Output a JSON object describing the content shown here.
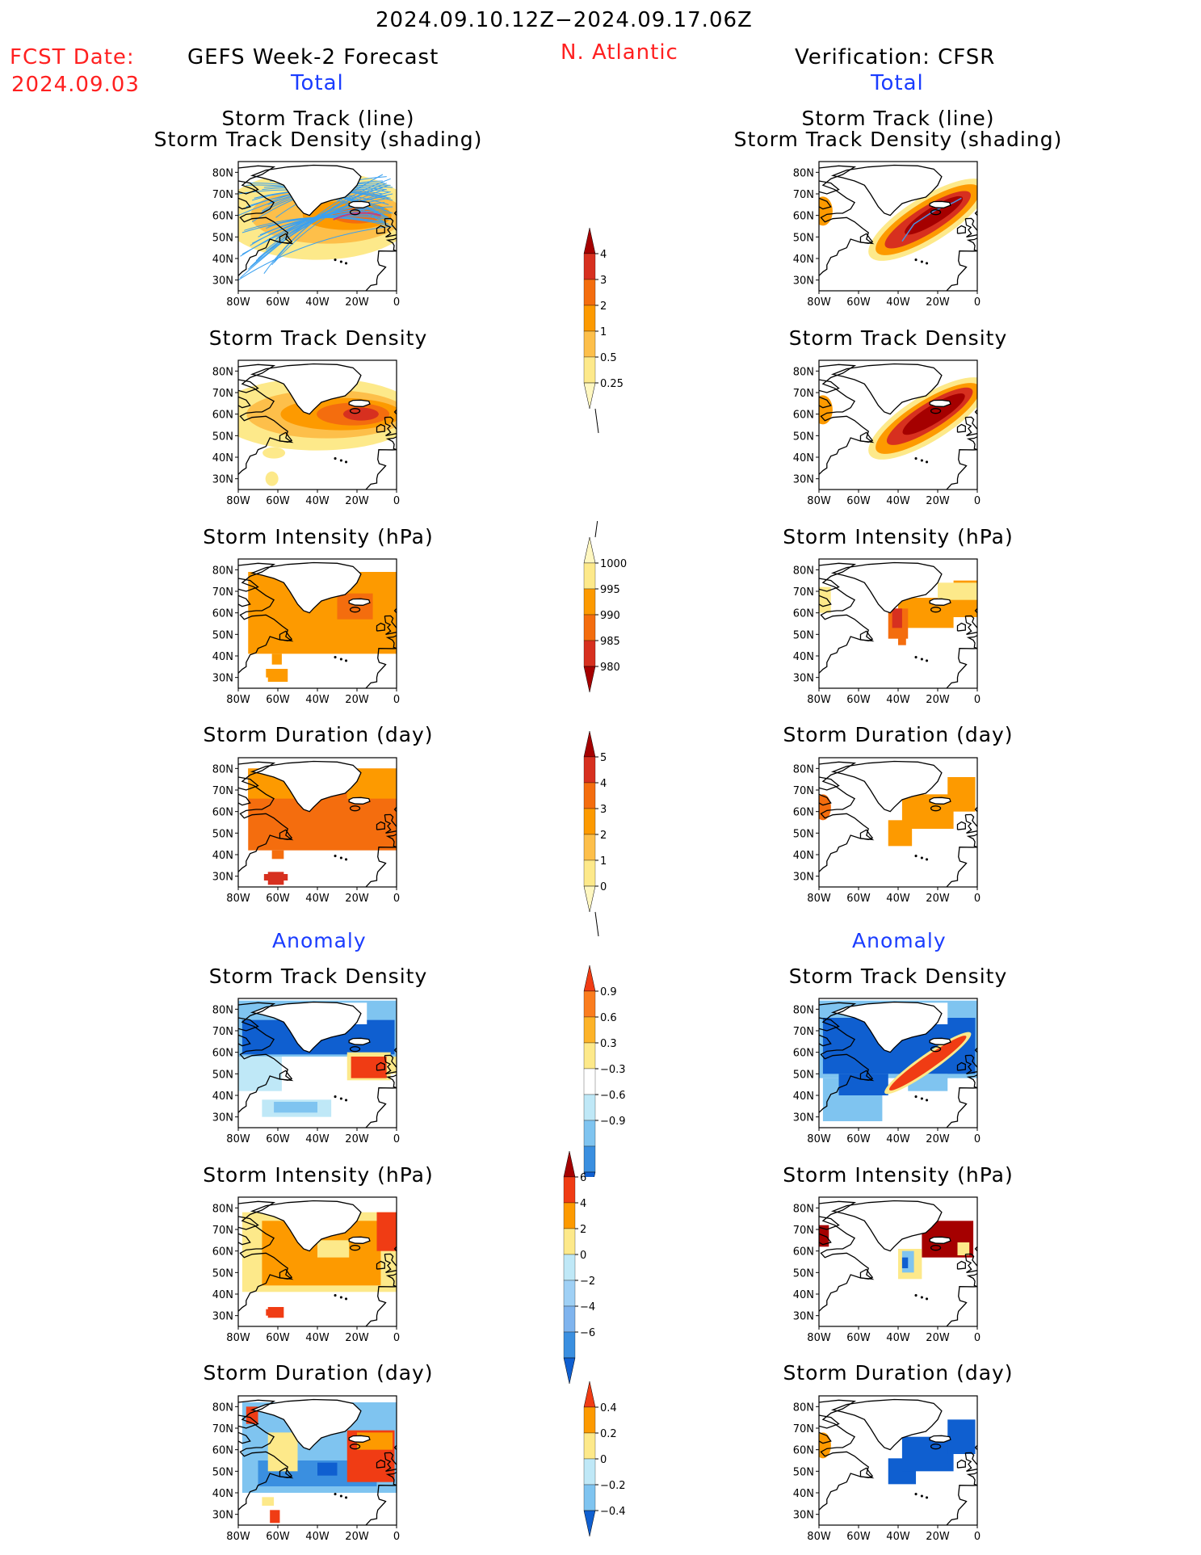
{
  "header": {
    "date_range": "2024.09.10.12Z−2024.09.17.06Z",
    "fcst_label": "FCST Date:",
    "fcst_date": "2024.09.03",
    "left_title": "GEFS Week-2 Forecast",
    "region": "N. Atlantic",
    "right_title": "Verification: CFSR"
  },
  "sections": {
    "total": "Total",
    "anomaly": "Anomaly"
  },
  "panel_titles": {
    "track_line": "Storm Track (line)",
    "track_shading": "Storm Track Density (shading)",
    "track_density": "Storm Track Density",
    "intensity": "Storm Intensity (hPa)",
    "duration": "Storm Duration (day)"
  },
  "axes": {
    "lat_ticks": [
      "80N",
      "70N",
      "60N",
      "50N",
      "40N",
      "30N"
    ],
    "lon_ticks": [
      "80W",
      "60W",
      "40W",
      "20W",
      "0"
    ]
  },
  "colorbars": [
    {
      "id": "cb-density",
      "labels": [
        "4",
        "3",
        "2",
        "1",
        "0.5",
        "0.25"
      ],
      "colors": [
        "#a50000",
        "#d7301f",
        "#f46d0e",
        "#fd9a00",
        "#fdbf4a",
        "#fde98a",
        "#fff7c0"
      ],
      "tail": "bottom"
    },
    {
      "id": "cb-intensity",
      "labels": [
        "1000",
        "995",
        "990",
        "985",
        "980"
      ],
      "colors": [
        "#fff7c0",
        "#fde98a",
        "#fd9a00",
        "#f46d0e",
        "#d7301f",
        "#a50000"
      ],
      "tail": "top"
    },
    {
      "id": "cb-duration",
      "labels": [
        "5",
        "4",
        "3",
        "2",
        "1",
        "0"
      ],
      "colors": [
        "#a50000",
        "#d7301f",
        "#f46d0e",
        "#fd9a00",
        "#fdbf4a",
        "#fde98a",
        "#fff7c0"
      ],
      "tail": "bottom"
    },
    {
      "id": "cb-anom-density",
      "labels": [
        "0.9",
        "0.6",
        "0.3",
        "−0.3",
        "−0.6",
        "−0.9"
      ],
      "colors": [
        "#f03c14",
        "#fb7d1e",
        "#fdb328",
        "#fde98a",
        "#ffffff",
        "#bfe8f7",
        "#7fc4f0",
        "#3a8fe0",
        "#0f5fd0"
      ],
      "tail": "none"
    },
    {
      "id": "cb-anom-intensity",
      "labels": [
        "6",
        "4",
        "2",
        "0",
        "−2",
        "−4",
        "−6"
      ],
      "colors": [
        "#a50000",
        "#f03c14",
        "#fd9a00",
        "#fde98a",
        "#bfe8f7",
        "#9fd0f5",
        "#7fb4ee",
        "#3a8fe0",
        "#0f5fd0"
      ],
      "tail": "none"
    },
    {
      "id": "cb-anom-duration",
      "labels": [
        "0.4",
        "0.2",
        "0",
        "−0.2",
        "−0.4"
      ],
      "colors": [
        "#f03c14",
        "#fd9a00",
        "#fde98a",
        "#bfe8f7",
        "#7fc4f0",
        "#0f5fd0"
      ],
      "tail": "none"
    }
  ],
  "chart_data": [
    {
      "panel": "left-total-track",
      "type": "heatmap",
      "title": "Storm Track (line) / Storm Track Density (shading)",
      "note": "GEFS ensemble tracks overlaid on density, max near 60N 20W"
    },
    {
      "panel": "right-total-track",
      "type": "heatmap",
      "title": "Storm Track (line) / Storm Track Density (shading)",
      "note": "CFSR single track 48N 38W to 68N 8W"
    },
    {
      "panel": "left-total-density",
      "type": "heatmap",
      "title": "Storm Track Density",
      "max_center": [
        -20,
        60
      ],
      "max_value": 3
    },
    {
      "panel": "right-total-density",
      "type": "heatmap",
      "title": "Storm Track Density",
      "max_center": [
        -25,
        60
      ],
      "max_value": 4
    },
    {
      "panel": "left-total-intensity",
      "type": "heatmap",
      "title": "Storm Intensity (hPa)",
      "typical_value": 995,
      "min_value": 990
    },
    {
      "panel": "right-total-intensity",
      "type": "heatmap",
      "title": "Storm Intensity (hPa)",
      "min_value": 985
    },
    {
      "panel": "left-total-duration",
      "type": "heatmap",
      "title": "Storm Duration (day)",
      "typical_value": 3,
      "max_value": 5
    },
    {
      "panel": "right-total-duration",
      "type": "heatmap",
      "title": "Storm Duration (day)",
      "typical_value": 2
    },
    {
      "panel": "left-anom-density",
      "type": "heatmap",
      "title": "Storm Track Density",
      "min_value": -0.9,
      "max_value": 0.9
    },
    {
      "panel": "right-anom-density",
      "type": "heatmap",
      "title": "Storm Track Density",
      "min_value": -0.9,
      "max_value": 0.9
    },
    {
      "panel": "left-anom-intensity",
      "type": "heatmap",
      "title": "Storm Intensity (hPa)",
      "min_value": 0,
      "max_value": 4
    },
    {
      "panel": "right-anom-intensity",
      "type": "heatmap",
      "title": "Storm Intensity (hPa)",
      "min_value": -6,
      "max_value": 6
    },
    {
      "panel": "left-anom-duration",
      "type": "heatmap",
      "title": "Storm Duration (day)",
      "min_value": -0.4,
      "max_value": 0.4
    },
    {
      "panel": "right-anom-duration",
      "type": "heatmap",
      "title": "Storm Duration (day)",
      "min_value": -0.4,
      "max_value": -0.4
    }
  ]
}
